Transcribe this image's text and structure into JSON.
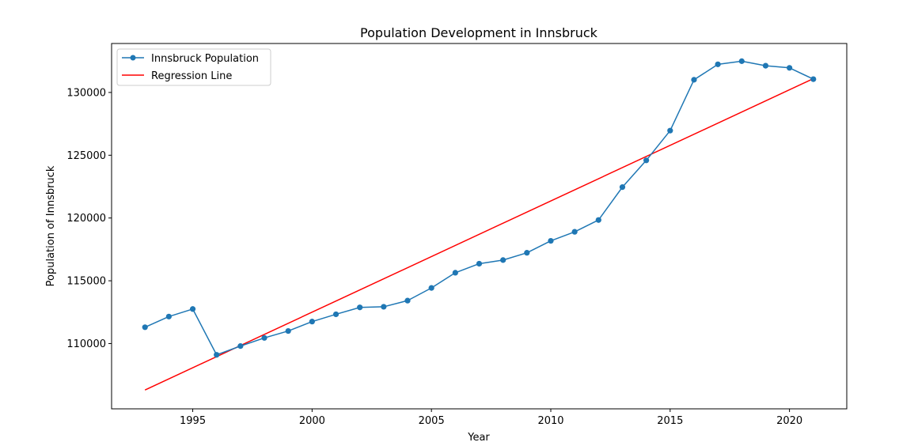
{
  "chart_data": {
    "type": "line",
    "title": "Population Development in Innsbruck",
    "xlabel": "Year",
    "ylabel": "Population of Innsbruck",
    "xlim": [
      1991.6,
      2022.4
    ],
    "ylim": [
      104800,
      133900
    ],
    "xticks": [
      1995,
      2000,
      2005,
      2010,
      2015,
      2020
    ],
    "yticks": [
      110000,
      115000,
      120000,
      125000,
      130000
    ],
    "grid": false,
    "legend_position": "upper-left",
    "x": [
      1993,
      1994,
      1995,
      1996,
      1997,
      1998,
      1999,
      2000,
      2001,
      2002,
      2003,
      2004,
      2005,
      2006,
      2007,
      2008,
      2009,
      2010,
      2011,
      2012,
      2013,
      2014,
      2015,
      2016,
      2017,
      2018,
      2019,
      2020,
      2021
    ],
    "series": [
      {
        "name": "Innsbruck Population",
        "color": "#1f77b4",
        "marker": "circle",
        "values": [
          111300,
          112150,
          112750,
          109100,
          109800,
          110450,
          111000,
          111750,
          112330,
          112880,
          112930,
          113420,
          114430,
          115640,
          116360,
          116650,
          117230,
          118180,
          118900,
          119840,
          122460,
          124590,
          126960,
          131010,
          132240,
          132490,
          132130,
          131960,
          131060
        ]
      },
      {
        "name": "Regression Line",
        "color": "#ff0000",
        "marker": "none",
        "x": [
          1993,
          2021
        ],
        "values": [
          106300,
          131100
        ]
      }
    ]
  }
}
